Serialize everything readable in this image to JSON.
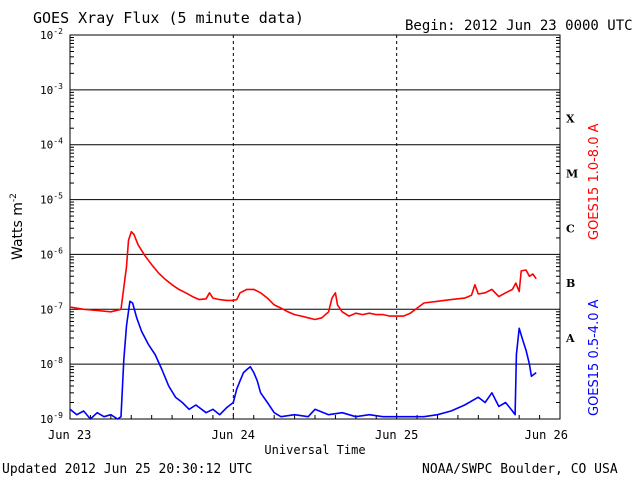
{
  "chart_data": {
    "type": "line",
    "title": "GOES Xray Flux (5 minute data)",
    "begin": "Begin:  2012 Jun 23 0000 UTC",
    "xlabel": "Universal Time",
    "ylabel": "Watts m",
    "ylabel_exp": "-2",
    "y_log_scale": true,
    "ylim": [
      1e-09,
      0.01
    ],
    "xlim": [
      0,
      72
    ],
    "x_unit": "hours since Jun 23 0000 UTC",
    "y_ticks": [
      {
        "base": "10",
        "exp": "-2",
        "value": 0.01
      },
      {
        "base": "10",
        "exp": "-3",
        "value": 0.001
      },
      {
        "base": "10",
        "exp": "-4",
        "value": 0.0001
      },
      {
        "base": "10",
        "exp": "-5",
        "value": 1e-05
      },
      {
        "base": "10",
        "exp": "-6",
        "value": 1e-06
      },
      {
        "base": "10",
        "exp": "-7",
        "value": 1e-07
      },
      {
        "base": "10",
        "exp": "-8",
        "value": 1e-08
      },
      {
        "base": "10",
        "exp": "-9",
        "value": 1e-09
      }
    ],
    "x_ticks": [
      {
        "label": "Jun 23",
        "value": 0
      },
      {
        "label": "Jun 24",
        "value": 24
      },
      {
        "label": "Jun 25",
        "value": 48
      },
      {
        "label": "Jun 26",
        "value": 72
      }
    ],
    "flare_classes": [
      {
        "label": "X",
        "value": 0.0003
      },
      {
        "label": "M",
        "value": 3e-05
      },
      {
        "label": "C",
        "value": 3e-06
      },
      {
        "label": "B",
        "value": 3e-07
      },
      {
        "label": "A",
        "value": 3e-08
      }
    ],
    "grid": "horizontal lines at each decade, dashed verticals at day boundaries",
    "series": [
      {
        "name": "GOES15 1.0-8.0 A",
        "color": "#ff0000",
        "points": [
          [
            0,
            1.1e-07
          ],
          [
            2,
            1e-07
          ],
          [
            4,
            9.5e-08
          ],
          [
            6,
            9e-08
          ],
          [
            7.5,
            1e-07
          ],
          [
            8.3,
            6e-07
          ],
          [
            8.6,
            1.8e-06
          ],
          [
            9.0,
            2.6e-06
          ],
          [
            9.4,
            2.3e-06
          ],
          [
            10.0,
            1.5e-06
          ],
          [
            11.0,
            9.5e-07
          ],
          [
            12.0,
            6.5e-07
          ],
          [
            13.0,
            4.6e-07
          ],
          [
            14.0,
            3.5e-07
          ],
          [
            15.0,
            2.8e-07
          ],
          [
            16.0,
            2.3e-07
          ],
          [
            17.0,
            2e-07
          ],
          [
            18.0,
            1.7e-07
          ],
          [
            19.0,
            1.5e-07
          ],
          [
            20.0,
            1.55e-07
          ],
          [
            20.5,
            2e-07
          ],
          [
            21.0,
            1.6e-07
          ],
          [
            22.0,
            1.5e-07
          ],
          [
            23.0,
            1.45e-07
          ],
          [
            24.0,
            1.45e-07
          ],
          [
            24.5,
            1.5e-07
          ],
          [
            25.0,
            2e-07
          ],
          [
            26.0,
            2.3e-07
          ],
          [
            27.0,
            2.3e-07
          ],
          [
            28.0,
            2e-07
          ],
          [
            29.0,
            1.6e-07
          ],
          [
            30.0,
            1.2e-07
          ],
          [
            31.0,
            1.05e-07
          ],
          [
            32.0,
            9e-08
          ],
          [
            33.0,
            8e-08
          ],
          [
            34.0,
            7.5e-08
          ],
          [
            35.0,
            7e-08
          ],
          [
            36.0,
            6.5e-08
          ],
          [
            37.0,
            7e-08
          ],
          [
            38.0,
            9e-08
          ],
          [
            38.5,
            1.6e-07
          ],
          [
            39.0,
            2e-07
          ],
          [
            39.3,
            1.2e-07
          ],
          [
            40.0,
            9e-08
          ],
          [
            41.0,
            7.5e-08
          ],
          [
            42.0,
            8.5e-08
          ],
          [
            43.0,
            8e-08
          ],
          [
            44.0,
            8.5e-08
          ],
          [
            45.0,
            8e-08
          ],
          [
            46.0,
            8e-08
          ],
          [
            47.0,
            7.5e-08
          ],
          [
            48.0,
            7.5e-08
          ],
          [
            49.0,
            7.5e-08
          ],
          [
            50.0,
            8.5e-08
          ],
          [
            51.0,
            1.05e-07
          ],
          [
            52.0,
            1.3e-07
          ],
          [
            54.0,
            1.4e-07
          ],
          [
            56.0,
            1.5e-07
          ],
          [
            58.0,
            1.6e-07
          ],
          [
            59.0,
            1.8e-07
          ],
          [
            59.5,
            2.8e-07
          ],
          [
            60.0,
            1.9e-07
          ],
          [
            61.0,
            2e-07
          ],
          [
            62.0,
            2.3e-07
          ],
          [
            63.0,
            1.7e-07
          ],
          [
            64.0,
            2e-07
          ],
          [
            65.0,
            2.3e-07
          ],
          [
            65.5,
            3e-07
          ],
          [
            66.0,
            2.1e-07
          ],
          [
            66.3,
            5e-07
          ],
          [
            67.0,
            5.2e-07
          ],
          [
            67.5,
            4e-07
          ],
          [
            68.0,
            4.4e-07
          ],
          [
            68.5,
            3.6e-07
          ]
        ]
      },
      {
        "name": "GOES15 0.5-4.0 A",
        "color": "#0000ff",
        "points": [
          [
            0,
            1.5e-09
          ],
          [
            1,
            1.2e-09
          ],
          [
            2,
            1.4e-09
          ],
          [
            3,
            1e-09
          ],
          [
            4,
            1.3e-09
          ],
          [
            5,
            1.1e-09
          ],
          [
            6,
            1.2e-09
          ],
          [
            7,
            1e-09
          ],
          [
            7.5,
            1.1e-09
          ],
          [
            7.9,
            1.2e-08
          ],
          [
            8.3,
            5e-08
          ],
          [
            8.8,
            1.4e-07
          ],
          [
            9.2,
            1.3e-07
          ],
          [
            9.8,
            7e-08
          ],
          [
            10.5,
            4e-08
          ],
          [
            11.5,
            2.3e-08
          ],
          [
            12.5,
            1.5e-08
          ],
          [
            13.5,
            8e-09
          ],
          [
            14.5,
            4e-09
          ],
          [
            15.5,
            2.5e-09
          ],
          [
            16.5,
            2e-09
          ],
          [
            17.5,
            1.5e-09
          ],
          [
            18.5,
            1.8e-09
          ],
          [
            20,
            1.3e-09
          ],
          [
            21,
            1.5e-09
          ],
          [
            22,
            1.2e-09
          ],
          [
            23,
            1.6e-09
          ],
          [
            24,
            2e-09
          ],
          [
            24.5,
            3.5e-09
          ],
          [
            25.0,
            5e-09
          ],
          [
            25.5,
            7e-09
          ],
          [
            26.0,
            8e-09
          ],
          [
            26.5,
            9e-09
          ],
          [
            27.0,
            7e-09
          ],
          [
            27.5,
            5e-09
          ],
          [
            28.0,
            3e-09
          ],
          [
            29.0,
            2e-09
          ],
          [
            30.0,
            1.3e-09
          ],
          [
            31,
            1.1e-09
          ],
          [
            33,
            1.2e-09
          ],
          [
            35,
            1.1e-09
          ],
          [
            36,
            1.5e-09
          ],
          [
            38,
            1.2e-09
          ],
          [
            40,
            1.3e-09
          ],
          [
            42,
            1.1e-09
          ],
          [
            44,
            1.2e-09
          ],
          [
            46,
            1.1e-09
          ],
          [
            48,
            1.1e-09
          ],
          [
            50,
            1.1e-09
          ],
          [
            52,
            1.1e-09
          ],
          [
            54,
            1.2e-09
          ],
          [
            56,
            1.4e-09
          ],
          [
            58,
            1.8e-09
          ],
          [
            60,
            2.5e-09
          ],
          [
            61,
            2e-09
          ],
          [
            62,
            3e-09
          ],
          [
            63,
            1.7e-09
          ],
          [
            64,
            2e-09
          ],
          [
            65,
            1.4e-09
          ],
          [
            65.4,
            1.2e-09
          ],
          [
            65.6,
            1.5e-08
          ],
          [
            66.0,
            4.5e-08
          ],
          [
            66.5,
            2.8e-08
          ],
          [
            67.0,
            1.8e-08
          ],
          [
            67.5,
            1e-08
          ],
          [
            67.8,
            6e-09
          ],
          [
            68.5,
            7e-09
          ]
        ]
      }
    ]
  },
  "footer": {
    "updated": "Updated 2012 Jun 25 20:30:12 UTC",
    "source": "NOAA/SWPC Boulder, CO USA"
  }
}
